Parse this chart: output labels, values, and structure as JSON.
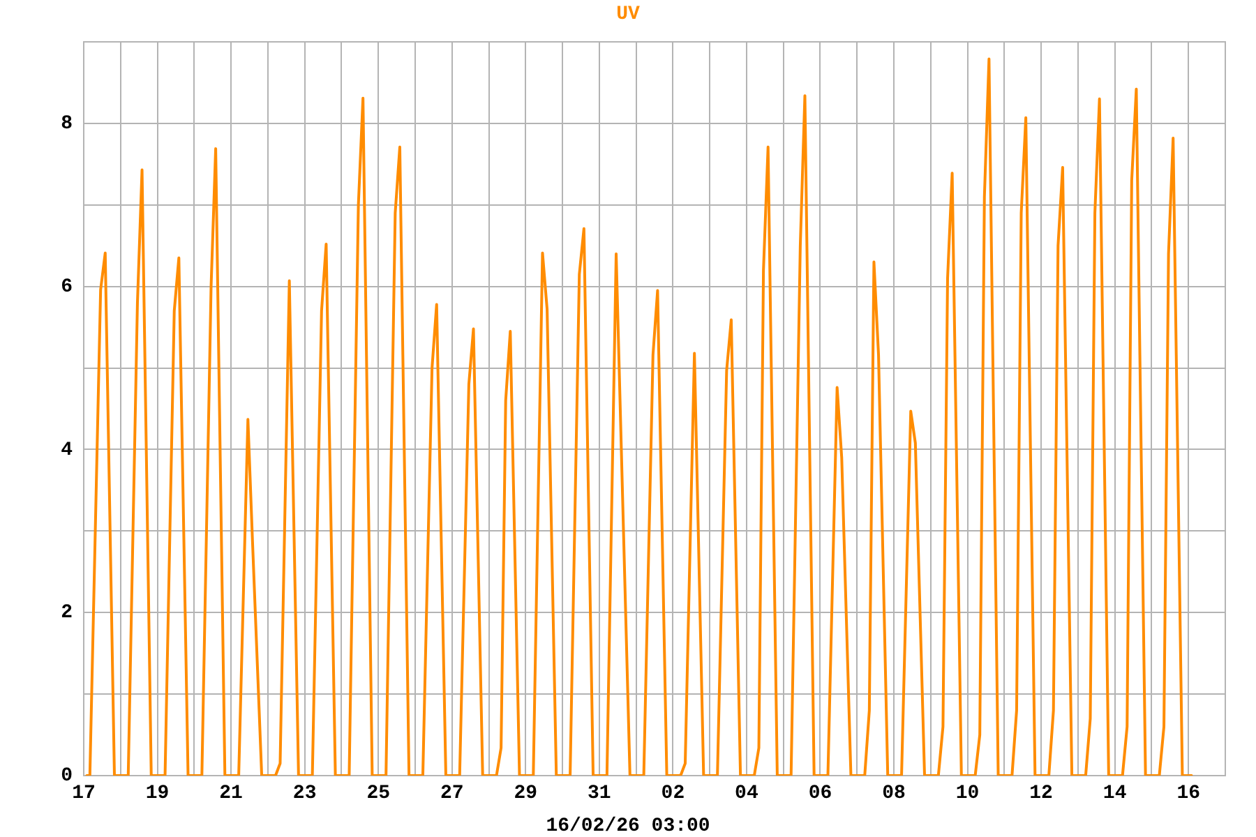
{
  "chart_data": {
    "type": "line",
    "title": "UV",
    "xlabel": "16/02/26 03:00",
    "color": "#ff8c00",
    "grid": true,
    "xlim": [
      "--01-17",
      "--02-17"
    ],
    "xticks": [
      {
        "value": "--01-17",
        "label": "17"
      },
      {
        "value": "--01-18",
        "label": null
      },
      {
        "value": "--01-19",
        "label": "19"
      },
      {
        "value": "--01-20",
        "label": null
      },
      {
        "value": "--01-21",
        "label": "21"
      },
      {
        "value": "--01-22",
        "label": null
      },
      {
        "value": "--01-23",
        "label": "23"
      },
      {
        "value": "--01-24",
        "label": null
      },
      {
        "value": "--01-25",
        "label": "25"
      },
      {
        "value": "--01-26",
        "label": null
      },
      {
        "value": "--01-27",
        "label": "27"
      },
      {
        "value": "--01-28",
        "label": null
      },
      {
        "value": "--01-29",
        "label": "29"
      },
      {
        "value": "--01-30",
        "label": null
      },
      {
        "value": "--01-31",
        "label": "31"
      },
      {
        "value": "--02-01",
        "label": null
      },
      {
        "value": "--02-02",
        "label": "02"
      },
      {
        "value": "--02-03",
        "label": null
      },
      {
        "value": "--02-04",
        "label": "04"
      },
      {
        "value": "--02-05",
        "label": null
      },
      {
        "value": "--02-06",
        "label": "06"
      },
      {
        "value": "--02-07",
        "label": null
      },
      {
        "value": "--02-08",
        "label": "08"
      },
      {
        "value": "--02-09",
        "label": null
      },
      {
        "value": "--02-10",
        "label": "10"
      },
      {
        "value": "--02-11",
        "label": null
      },
      {
        "value": "--02-12",
        "label": "12"
      },
      {
        "value": "--02-13",
        "label": null
      },
      {
        "value": "--02-14",
        "label": "14"
      },
      {
        "value": "--02-15",
        "label": null
      },
      {
        "value": "--02-16",
        "label": "16"
      }
    ],
    "ylim": [
      0,
      9
    ],
    "yticks": [
      0,
      {
        "value": 1,
        "label": null
      },
      2,
      {
        "value": 3,
        "label": null
      },
      4,
      {
        "value": 5,
        "label": null
      },
      6,
      {
        "value": 7,
        "label": null
      },
      8,
      {
        "value": 9,
        "label": null
      }
    ],
    "x": [
      "--01-17T02:00",
      "--01-17T04:00",
      "--01-17T11:00",
      "--01-17T14:00",
      "--01-17T20:00",
      "--01-18T05:00",
      "--01-18T11:00",
      "--01-18T14:00",
      "--01-18T20:00",
      "--01-19T05:00",
      "--01-19T11:00",
      "--01-19T14:00",
      "--01-19T20:00",
      "--01-20T05:00",
      "--01-20T11:00",
      "--01-20T14:00",
      "--01-20T20:00",
      "--01-21T05:00",
      "--01-21T11:00",
      "--01-21T14:00",
      "--01-21T20:00",
      "--01-22T05:00",
      "--01-22T08:00",
      "--01-22T14:00",
      "--01-22T20:00",
      "--01-23T05:00",
      "--01-23T11:00",
      "--01-23T14:00",
      "--01-23T20:00",
      "--01-24T05:00",
      "--01-24T11:00",
      "--01-24T14:00",
      "--01-24T20:00",
      "--01-25T05:00",
      "--01-25T11:00",
      "--01-25T14:00",
      "--01-25T20:00",
      "--01-26T05:00",
      "--01-26T11:00",
      "--01-26T14:00",
      "--01-26T20:00",
      "--01-27T05:00",
      "--01-27T11:00",
      "--01-27T14:00",
      "--01-27T20:00",
      "--01-28T05:00",
      "--01-28T08:00",
      "--01-28T11:00",
      "--01-28T14:00",
      "--01-28T20:00",
      "--01-29T05:00",
      "--01-29T11:00",
      "--01-29T14:00",
      "--01-29T20:00",
      "--01-30T05:00",
      "--01-30T11:00",
      "--01-30T14:00",
      "--01-30T20:00",
      "--01-31T05:00",
      "--01-31T11:00",
      "--01-31T20:00",
      "--02-01T05:00",
      "--02-01T11:00",
      "--02-01T14:00",
      "--02-01T20:00",
      "--02-02T05:00",
      "--02-02T08:00",
      "--02-02T14:00",
      "--02-02T20:00",
      "--02-03T05:00",
      "--02-03T11:00",
      "--02-03T14:00",
      "--02-03T20:00",
      "--02-04T05:00",
      "--02-04T08:00",
      "--02-04T11:00",
      "--02-04T14:00",
      "--02-04T20:00",
      "--02-05T05:00",
      "--02-05T11:00",
      "--02-05T14:00",
      "--02-05T20:00",
      "--02-06T05:00",
      "--02-06T11:00",
      "--02-06T14:00",
      "--02-06T20:00",
      "--02-07T05:00",
      "--02-07T08:00",
      "--02-07T11:00",
      "--02-07T14:00",
      "--02-07T20:00",
      "--02-08T05:00",
      "--02-08T11:00",
      "--02-08T14:00",
      "--02-08T20:00",
      "--02-09T05:00",
      "--02-09T08:00",
      "--02-09T11:00",
      "--02-09T14:00",
      "--02-09T20:00",
      "--02-10T05:00",
      "--02-10T08:00",
      "--02-10T11:00",
      "--02-10T14:00",
      "--02-10T20:00",
      "--02-11T05:00",
      "--02-11T08:00",
      "--02-11T11:00",
      "--02-11T14:00",
      "--02-11T20:00",
      "--02-12T05:00",
      "--02-12T08:00",
      "--02-12T11:00",
      "--02-12T14:00",
      "--02-12T20:00",
      "--02-13T05:00",
      "--02-13T08:00",
      "--02-13T11:00",
      "--02-13T14:00",
      "--02-13T20:00",
      "--02-14T05:00",
      "--02-14T08:00",
      "--02-14T11:00",
      "--02-14T14:00",
      "--02-14T20:00",
      "--02-15T05:00",
      "--02-15T08:00",
      "--02-15T11:00",
      "--02-15T14:00",
      "--02-15T20:00",
      "--02-16T02:00"
    ],
    "values": [
      0,
      0,
      5.96,
      6.41,
      0,
      0,
      5.8,
      7.43,
      0,
      0,
      5.7,
      6.35,
      0,
      0,
      6.0,
      7.69,
      0,
      0,
      4.37,
      2.87,
      0,
      0,
      0.15,
      6.07,
      0,
      0,
      5.7,
      6.52,
      0,
      0,
      7.0,
      8.31,
      0,
      0,
      6.9,
      7.71,
      0,
      0,
      5.0,
      5.78,
      0,
      0,
      4.8,
      5.48,
      0,
      0,
      0.34,
      4.6,
      5.45,
      0,
      0,
      6.41,
      5.72,
      0,
      0,
      6.15,
      6.71,
      0,
      0,
      6.4,
      0,
      0,
      5.16,
      5.95,
      0,
      0,
      0.15,
      5.18,
      0,
      0,
      4.97,
      5.59,
      0,
      0,
      0.34,
      6.2,
      7.71,
      0,
      0,
      6.5,
      8.34,
      0,
      0,
      4.76,
      3.9,
      0,
      0,
      0.8,
      6.3,
      5.16,
      0,
      0,
      4.47,
      4.08,
      0,
      0,
      0.6,
      6.1,
      7.39,
      0,
      0,
      0.5,
      7.1,
      8.79,
      0,
      0,
      0.8,
      6.9,
      8.07,
      0,
      0,
      0.8,
      6.5,
      7.46,
      0,
      0,
      0.7,
      6.9,
      8.3,
      0,
      0,
      0.6,
      7.3,
      8.42,
      0,
      0,
      0.6,
      6.4,
      7.82,
      0,
      0
    ]
  }
}
